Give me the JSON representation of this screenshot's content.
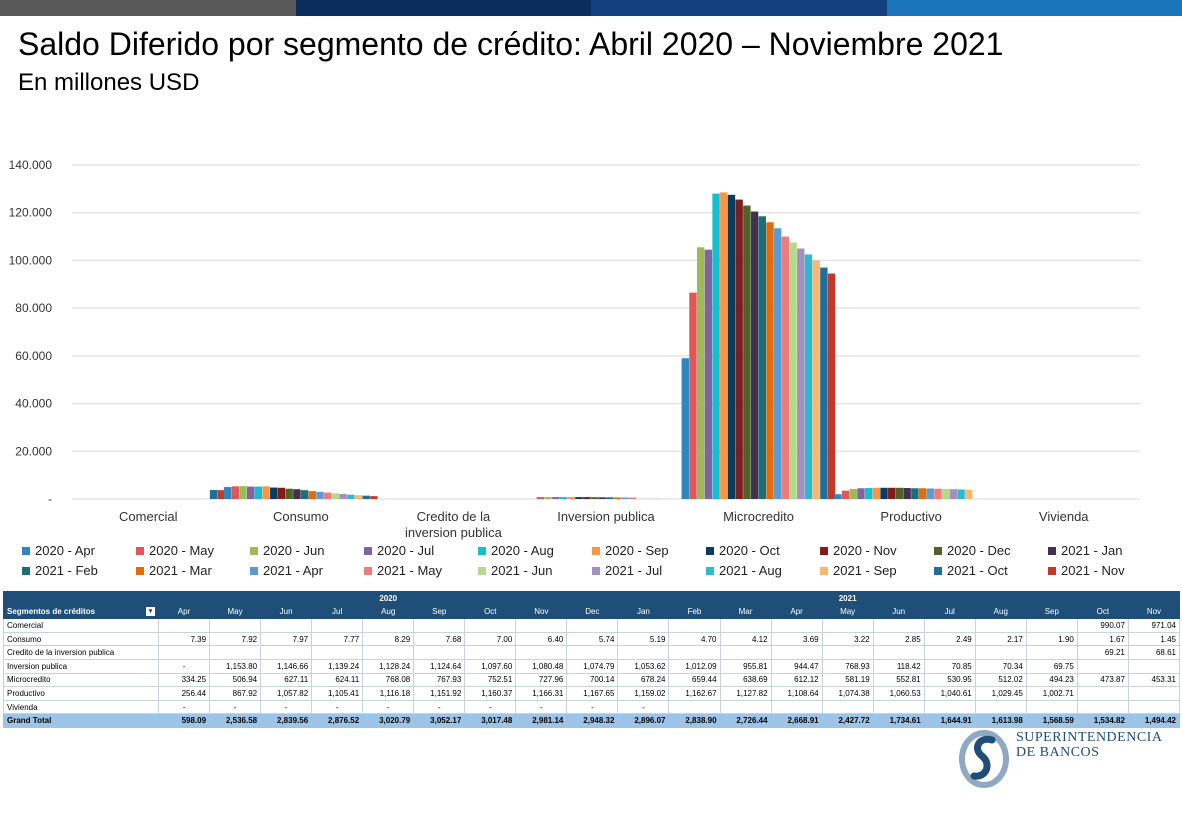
{
  "header": {
    "title": "Saldo Diferido por segmento de crédito: Abril 2020 – Noviembre 2021",
    "subtitle": "En millones USD",
    "bar_colors": [
      "#595959",
      "#0b2d5e",
      "#123f7d",
      "#1b75bb"
    ]
  },
  "chart_data": {
    "type": "bar",
    "categories": [
      "Comercial",
      "Consumo",
      "Credito de la inversion publica",
      "Inversion publica",
      "Microcredito",
      "Productivo",
      "Vivienda"
    ],
    "y_ticks": [
      "140.000",
      "120.000",
      "100.000",
      "80.000",
      "60.000",
      "40.000",
      "20.000",
      "-"
    ],
    "ylim": [
      0,
      140000
    ],
    "grid": true,
    "legend_position": "bottom",
    "series": [
      {
        "name": "2020 - Apr",
        "color": "#2e86c1",
        "values": [
          0,
          5000,
          0,
          0,
          59000,
          2000,
          0
        ]
      },
      {
        "name": "2020 - May",
        "color": "#e15759",
        "values": [
          0,
          5300,
          0,
          800,
          86500,
          3500,
          0
        ]
      },
      {
        "name": "2020 - Jun",
        "color": "#9bbb59",
        "values": [
          0,
          5400,
          0,
          800,
          105500,
          4200,
          0
        ]
      },
      {
        "name": "2020 - Jul",
        "color": "#8064a2",
        "values": [
          0,
          5200,
          0,
          800,
          104500,
          4500,
          0
        ]
      },
      {
        "name": "2020 - Aug",
        "color": "#17becf",
        "values": [
          0,
          5200,
          0,
          800,
          128000,
          4600,
          0
        ]
      },
      {
        "name": "2020 - Sep",
        "color": "#f79646",
        "values": [
          0,
          5300,
          0,
          800,
          128500,
          4700,
          0
        ]
      },
      {
        "name": "2020 - Oct",
        "color": "#0b3c5d",
        "values": [
          0,
          4800,
          0,
          800,
          127500,
          4700,
          0
        ]
      },
      {
        "name": "2020 - Nov",
        "color": "#7f1d1d",
        "values": [
          0,
          4700,
          0,
          800,
          125500,
          4700,
          0
        ]
      },
      {
        "name": "2020 - Dec",
        "color": "#4f6228",
        "values": [
          0,
          4300,
          0,
          750,
          123000,
          4700,
          0
        ]
      },
      {
        "name": "2021 - Jan",
        "color": "#403151",
        "values": [
          0,
          4100,
          0,
          700,
          120500,
          4600,
          0
        ]
      },
      {
        "name": "2021 - Feb",
        "color": "#1b6f79",
        "values": [
          0,
          3700,
          0,
          700,
          118500,
          4500,
          0
        ]
      },
      {
        "name": "2021 - Mar",
        "color": "#e26b0a",
        "values": [
          0,
          3300,
          0,
          650,
          116000,
          4500,
          0
        ]
      },
      {
        "name": "2021 - Apr",
        "color": "#5b9bd5",
        "values": [
          0,
          3000,
          0,
          600,
          113500,
          4400,
          0
        ]
      },
      {
        "name": "2021 - May",
        "color": "#ec7c7c",
        "values": [
          0,
          2700,
          0,
          600,
          110000,
          4300,
          0
        ]
      },
      {
        "name": "2021 - Jun",
        "color": "#b5d98a",
        "values": [
          0,
          2400,
          0,
          100,
          107500,
          4200,
          0
        ]
      },
      {
        "name": "2021 - Jul",
        "color": "#a490c0",
        "values": [
          0,
          2100,
          0,
          70,
          105000,
          4100,
          0
        ]
      },
      {
        "name": "2021 - Aug",
        "color": "#31b8cc",
        "values": [
          0,
          1800,
          0,
          70,
          102500,
          4000,
          0
        ]
      },
      {
        "name": "2021 - Sep",
        "color": "#f9b870",
        "values": [
          0,
          1600,
          0,
          70,
          100000,
          3900,
          0
        ]
      },
      {
        "name": "2021 - Oct",
        "color": "#1f6f9c",
        "values": [
          3800,
          1400,
          0,
          0,
          97000,
          0,
          0
        ]
      },
      {
        "name": "2021 - Nov",
        "color": "#c0392b",
        "values": [
          3700,
          1200,
          0,
          0,
          94500,
          0,
          0
        ]
      }
    ]
  },
  "table": {
    "corner": "Segmentos de créditos",
    "filter_icon": "filter-dropdown-icon",
    "years": [
      {
        "label": "2020",
        "span": 9
      },
      {
        "label": "2021",
        "span": 9
      },
      {
        "label": "",
        "span": 2
      }
    ],
    "months": [
      "Apr",
      "May",
      "Jun",
      "Jul",
      "Aug",
      "Sep",
      "Oct",
      "Nov",
      "Dec",
      "Jan",
      "Feb",
      "Mar",
      "Apr",
      "May",
      "Jun",
      "Jul",
      "Aug",
      "Sep",
      "Oct",
      "Nov"
    ],
    "rows": [
      {
        "label": "Comercial",
        "values": [
          "",
          "",
          "",
          "",
          "",
          "",
          "",
          "",
          "",
          "",
          "",
          "",
          "",
          "",
          "",
          "",
          "",
          "",
          "990.07",
          "971.04"
        ]
      },
      {
        "label": "Consumo",
        "values": [
          "7.39",
          "7.92",
          "7.97",
          "7.77",
          "8.29",
          "7.68",
          "7.00",
          "6.40",
          "5.74",
          "5.19",
          "4.70",
          "4.12",
          "3.69",
          "3.22",
          "2.85",
          "2.49",
          "2.17",
          "1.90",
          "1.67",
          "1.45"
        ]
      },
      {
        "label": "Credito de la inversion publica",
        "values": [
          "",
          "",
          "",
          "",
          "",
          "",
          "",
          "",
          "",
          "",
          "",
          "",
          "",
          "",
          "",
          "",
          "",
          "",
          "69.21",
          "68.61"
        ]
      },
      {
        "label": "Inversion publica",
        "values": [
          "-",
          "1,153.80",
          "1,146.66",
          "1,139.24",
          "1,128.24",
          "1,124.64",
          "1,097.60",
          "1,080.48",
          "1,074.79",
          "1,053.62",
          "1,012.09",
          "955.81",
          "944.47",
          "768.93",
          "118.42",
          "70.85",
          "70.34",
          "69.75",
          "",
          ""
        ]
      },
      {
        "label": "Microcredito",
        "values": [
          "334.25",
          "506.94",
          "627.11",
          "624.11",
          "768.08",
          "767.93",
          "752.51",
          "727.96",
          "700.14",
          "678.24",
          "659.44",
          "638.69",
          "612.12",
          "581.19",
          "552.81",
          "530.95",
          "512.02",
          "494.23",
          "473.87",
          "453.31"
        ]
      },
      {
        "label": "Productivo",
        "values": [
          "256.44",
          "867.92",
          "1,057.82",
          "1,105.41",
          "1,116.18",
          "1,151.92",
          "1,160.37",
          "1,166.31",
          "1,167.65",
          "1,159.02",
          "1,162.67",
          "1,127.82",
          "1,108.64",
          "1,074.38",
          "1,060.53",
          "1,040.61",
          "1,029.45",
          "1,002.71",
          "",
          ""
        ]
      },
      {
        "label": "Vivienda",
        "values": [
          "-",
          "-",
          "-",
          "-",
          "-",
          "-",
          "-",
          "-",
          "-",
          "-",
          "",
          "",
          "",
          "",
          "",
          "",
          "",
          "",
          "",
          ""
        ]
      }
    ],
    "total": {
      "label": "Grand Total",
      "values": [
        "598.09",
        "2,536.58",
        "2,839.56",
        "2,876.52",
        "3,020.79",
        "3,052.17",
        "3,017.48",
        "2,981.14",
        "2,948.32",
        "2,896.07",
        "2,838.90",
        "2,726.44",
        "2,668.91",
        "2,427.72",
        "1,734.61",
        "1,644.91",
        "1,613.98",
        "1,568.59",
        "1,534.82",
        "1,494.42"
      ]
    }
  },
  "logo": {
    "line1": "SUPERINTENDENCIA",
    "line2": "DE BANCOS",
    "icon": "superintendencia-logo-icon"
  }
}
